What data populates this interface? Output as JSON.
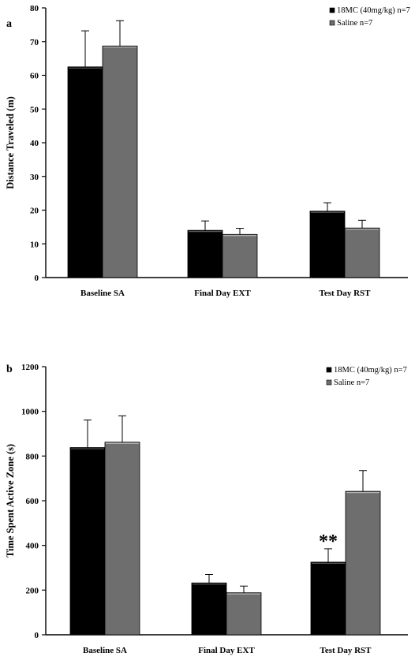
{
  "chart_data": [
    {
      "type": "bar",
      "panel": "a",
      "ylabel": "Distance Traveled (m)",
      "ylim": [
        0,
        80
      ],
      "yticks": [
        0,
        10,
        20,
        30,
        40,
        50,
        60,
        70,
        80
      ],
      "categories": [
        "Baseline SA",
        "Final Day EXT",
        "Test Day RST"
      ],
      "series": [
        {
          "name": "18MC (40mg/kg) n=7",
          "color": "#000000",
          "values": [
            62.5,
            14.0,
            19.7
          ],
          "errors": [
            10.7,
            2.8,
            2.5
          ]
        },
        {
          "name": "Saline n=7",
          "color": "#6e6e6e",
          "values": [
            68.7,
            12.8,
            14.7
          ],
          "errors": [
            7.5,
            1.8,
            2.3
          ]
        }
      ],
      "annotations": [],
      "legend": "top-right",
      "grid": false
    },
    {
      "type": "bar",
      "panel": "b",
      "ylabel": "Time Spent Active Zone (s)",
      "ylim": [
        0,
        1200
      ],
      "yticks": [
        0,
        200,
        400,
        600,
        800,
        1000,
        1200
      ],
      "categories": [
        "Baseline SA",
        "Final Day EXT",
        "Test Day RST"
      ],
      "series": [
        {
          "name": "18MC (40mg/kg) n=7",
          "color": "#000000",
          "values": [
            838,
            232,
            325
          ],
          "errors": [
            123,
            38,
            60
          ]
        },
        {
          "name": "Saline n=7",
          "color": "#6e6e6e",
          "values": [
            862,
            188,
            642
          ],
          "errors": [
            118,
            30,
            93
          ]
        }
      ],
      "annotations": [
        {
          "text": "**",
          "category": 2,
          "series": 0
        }
      ],
      "legend": "top-right",
      "grid": false
    }
  ]
}
